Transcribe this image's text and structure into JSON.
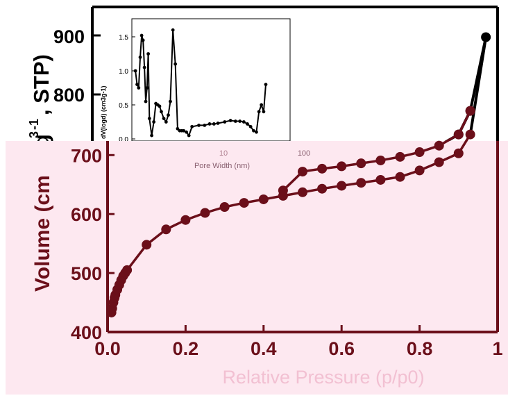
{
  "colors": {
    "main_series": "#6b0f1a",
    "upper_series": "#000000",
    "overlay_tint": "#fde8f0",
    "pale_text": "#f2c0d2",
    "inset_series": "#000000"
  },
  "chart_data": [
    {
      "type": "scatter",
      "title": "",
      "xlabel": "Relative Pressure (p/p0)",
      "ylabel_visible_fragments": [
        "Volume (cm",
        "3",
        "g",
        "-1",
        ", STP)"
      ],
      "xlim": [
        0,
        1
      ],
      "ylim": [
        400,
        950
      ],
      "x_ticks": [
        "0.0",
        "0.2",
        "0.4",
        "0.6",
        "0.8",
        "1"
      ],
      "y_ticks": [
        "400",
        "500",
        "600",
        "700",
        "800",
        "900"
      ],
      "grid": false,
      "series": [
        {
          "x": [
            0.01,
            0.012,
            0.015,
            0.018,
            0.02,
            0.025,
            0.03,
            0.035,
            0.04,
            0.045,
            0.05,
            0.1,
            0.15,
            0.2,
            0.25,
            0.3,
            0.35,
            0.4,
            0.45,
            0.5,
            0.55,
            0.6,
            0.65,
            0.7,
            0.75,
            0.8,
            0.85,
            0.9,
            0.93
          ],
          "y": [
            433,
            440,
            450,
            458,
            463,
            472,
            480,
            488,
            495,
            500,
            505,
            548,
            574,
            590,
            602,
            612,
            619,
            625,
            631,
            637,
            643,
            648,
            653,
            658,
            663,
            674,
            688,
            703,
            735
          ]
        },
        {
          "x": [
            0.45,
            0.5,
            0.55,
            0.6,
            0.65,
            0.7,
            0.75,
            0.8,
            0.85,
            0.9,
            0.93
          ],
          "y": [
            640,
            672,
            677,
            681,
            686,
            691,
            697,
            705,
            716,
            735,
            775
          ]
        },
        {
          "x": [
            0.8,
            0.85,
            0.9,
            0.93,
            0.97
          ],
          "y": [
            705,
            716,
            735,
            775,
            900
          ]
        }
      ]
    },
    {
      "type": "line",
      "title": "",
      "xlabel": "Pore Width (nm)",
      "ylabel": "dV(logd) (cm3g-1)",
      "x_scale": "log",
      "xlim": [
        1,
        100
      ],
      "ylim": [
        -0.1,
        1.8
      ],
      "x_ticks": [
        "10",
        "100"
      ],
      "y_ticks": [
        "0.0",
        "0.5",
        "1.0",
        "1.5"
      ],
      "series": [
        {
          "x": [
            1.1,
            1.15,
            1.2,
            1.25,
            1.3,
            1.35,
            1.4,
            1.45,
            1.5,
            1.55,
            1.6,
            1.7,
            1.8,
            1.9,
            2.0,
            2.1,
            2.2,
            2.35,
            2.5,
            2.65,
            2.8,
            3.0,
            3.2,
            3.4,
            3.6,
            3.8,
            4.0,
            4.3,
            4.6,
            5,
            6,
            7,
            8,
            9,
            10,
            12,
            14,
            16,
            18,
            20,
            22,
            24,
            26,
            28,
            30,
            32,
            34,
            36
          ],
          "y": [
            1.0,
            0.8,
            0.75,
            1.2,
            1.52,
            1.45,
            1.05,
            0.55,
            0.75,
            1.25,
            0.3,
            0.05,
            0.25,
            0.52,
            0.5,
            0.48,
            0.4,
            0.3,
            0.25,
            0.35,
            0.55,
            1.6,
            1.1,
            0.15,
            0.12,
            0.12,
            0.12,
            0.1,
            0.05,
            0.18,
            0.2,
            0.2,
            0.22,
            0.22,
            0.23,
            0.25,
            0.27,
            0.26,
            0.26,
            0.25,
            0.22,
            0.18,
            0.12,
            0.1,
            0.4,
            0.5,
            0.4,
            0.8
          ]
        }
      ]
    }
  ]
}
